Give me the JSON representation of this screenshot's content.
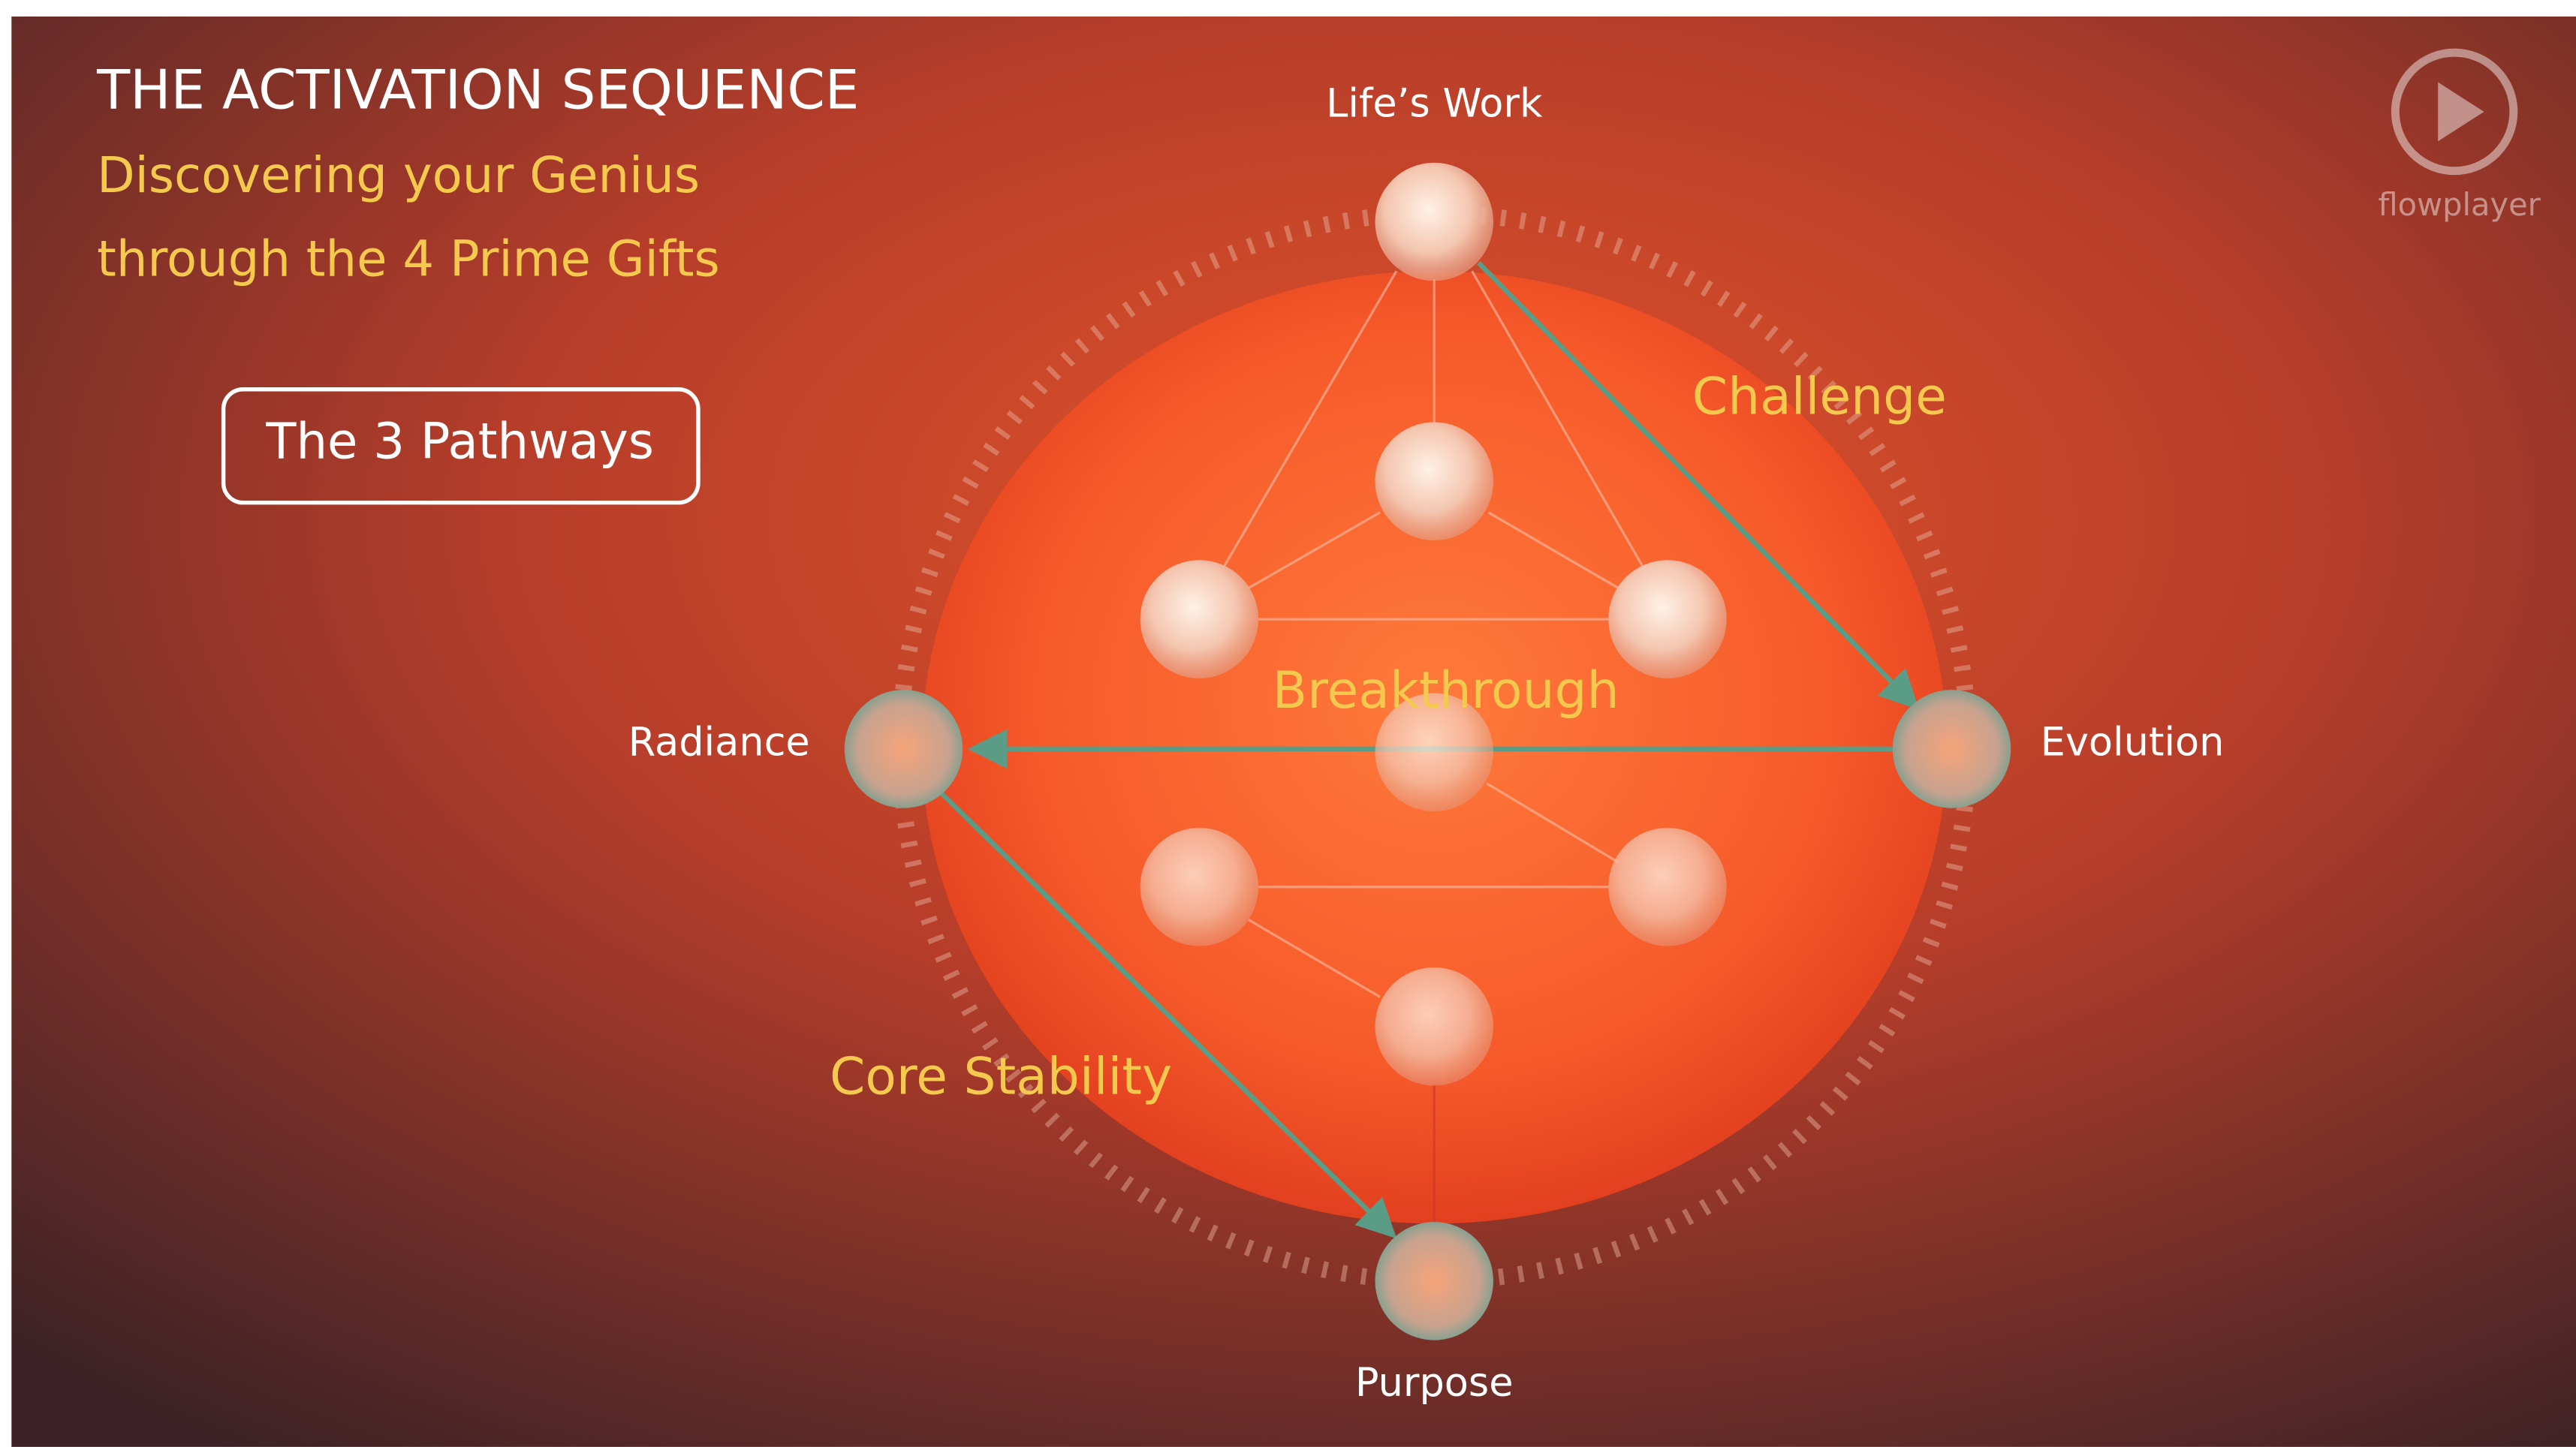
{
  "header": {
    "title": "THE ACTIVATION SEQUENCE",
    "subtitle_lines": [
      "Discovering your Genius",
      "through the 4 Prime Gifts"
    ]
  },
  "button": {
    "label": "The 3 Pathways"
  },
  "nodes": [
    {
      "label": "Life’s Work"
    },
    {
      "label": "Radiance"
    },
    {
      "label": "Evolution"
    },
    {
      "label": "Purpose"
    }
  ],
  "pathways": [
    {
      "label": "Challenge"
    },
    {
      "label": "Breakthrough"
    },
    {
      "label": "Core Stability"
    }
  ],
  "player": {
    "logo": "flowplayer"
  }
}
